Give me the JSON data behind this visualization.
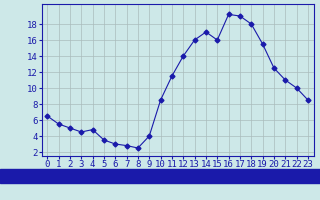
{
  "hours": [
    0,
    1,
    2,
    3,
    4,
    5,
    6,
    7,
    8,
    9,
    10,
    11,
    12,
    13,
    14,
    15,
    16,
    17,
    18,
    19,
    20,
    21,
    22,
    23
  ],
  "temperatures": [
    6.5,
    5.5,
    5.0,
    4.5,
    4.8,
    3.5,
    3.0,
    2.8,
    2.5,
    4.0,
    8.5,
    11.5,
    14.0,
    16.0,
    17.0,
    16.0,
    19.2,
    19.0,
    18.0,
    15.5,
    12.5,
    11.0,
    10.0,
    8.5
  ],
  "line_color": "#1a1aaa",
  "marker": "D",
  "marker_size": 2.5,
  "background_color": "#cde8e8",
  "grid_color": "#aabcbc",
  "ylabel_ticks": [
    2,
    4,
    6,
    8,
    10,
    12,
    14,
    16,
    18
  ],
  "ylim": [
    1.5,
    20.5
  ],
  "xlim": [
    -0.5,
    23.5
  ],
  "xlabel_fontsize": 8,
  "tick_label_fontsize": 6.5,
  "xlabel_bg_color": "#1a1aaa",
  "xlabel_text_color": "#ffffff",
  "spine_color": "#1a1aaa"
}
